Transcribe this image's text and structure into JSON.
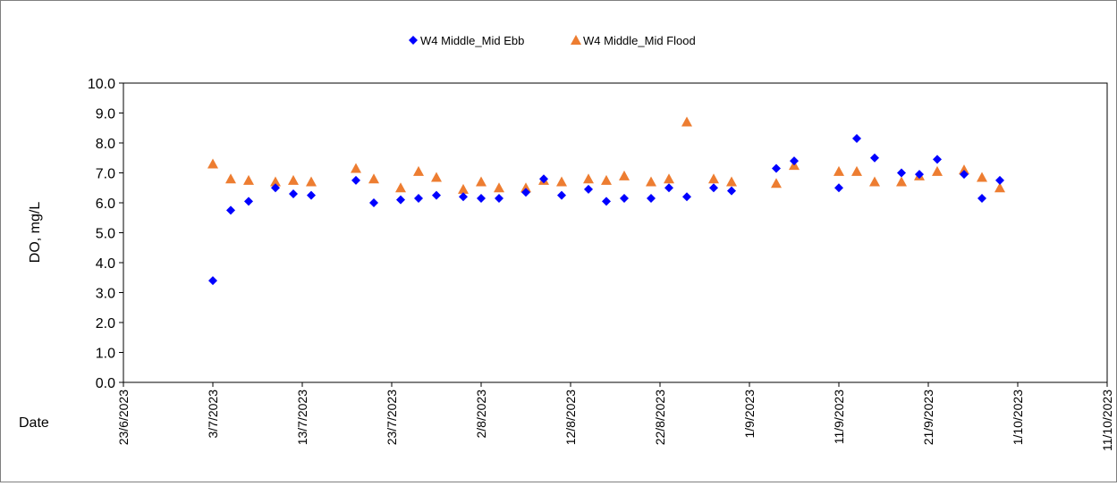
{
  "chart_data": {
    "type": "scatter",
    "title": "",
    "xlabel": "Date",
    "ylabel": "DO, mg/L",
    "x_type": "date",
    "xlim": [
      "2023-06-23",
      "2023-10-11"
    ],
    "x_ticks": [
      "2023-06-23",
      "2023-07-03",
      "2023-07-13",
      "2023-07-23",
      "2023-08-02",
      "2023-08-12",
      "2023-08-22",
      "2023-09-01",
      "2023-09-11",
      "2023-09-21",
      "2023-10-01",
      "2023-10-11"
    ],
    "x_tick_labels": [
      "23/6/2023",
      "3/7/2023",
      "13/7/2023",
      "23/7/2023",
      "2/8/2023",
      "12/8/2023",
      "22/8/2023",
      "1/9/2023",
      "11/9/2023",
      "21/9/2023",
      "1/10/2023",
      "11/10/2023"
    ],
    "ylim": [
      0,
      10
    ],
    "y_ticks": [
      0,
      1,
      2,
      3,
      4,
      5,
      6,
      7,
      8,
      9,
      10
    ],
    "y_tick_labels": [
      "0.0",
      "1.0",
      "2.0",
      "3.0",
      "4.0",
      "5.0",
      "6.0",
      "7.0",
      "8.0",
      "9.0",
      "10.0"
    ],
    "grid": false,
    "legend_position": "top-center",
    "series": [
      {
        "name": "W4 Middle_Mid Ebb",
        "marker": "diamond",
        "color": "#0000ff",
        "points": [
          [
            "2023-07-03",
            3.4
          ],
          [
            "2023-07-05",
            5.75
          ],
          [
            "2023-07-07",
            6.05
          ],
          [
            "2023-07-10",
            6.5
          ],
          [
            "2023-07-12",
            6.3
          ],
          [
            "2023-07-14",
            6.25
          ],
          [
            "2023-07-19",
            6.75
          ],
          [
            "2023-07-21",
            6.0
          ],
          [
            "2023-07-24",
            6.1
          ],
          [
            "2023-07-26",
            6.15
          ],
          [
            "2023-07-28",
            6.25
          ],
          [
            "2023-07-31",
            6.2
          ],
          [
            "2023-08-02",
            6.15
          ],
          [
            "2023-08-04",
            6.15
          ],
          [
            "2023-08-07",
            6.35
          ],
          [
            "2023-08-09",
            6.8
          ],
          [
            "2023-08-11",
            6.25
          ],
          [
            "2023-08-14",
            6.45
          ],
          [
            "2023-08-16",
            6.05
          ],
          [
            "2023-08-18",
            6.15
          ],
          [
            "2023-08-21",
            6.15
          ],
          [
            "2023-08-23",
            6.5
          ],
          [
            "2023-08-25",
            6.2
          ],
          [
            "2023-08-28",
            6.5
          ],
          [
            "2023-08-30",
            6.4
          ],
          [
            "2023-09-04",
            7.15
          ],
          [
            "2023-09-06",
            7.4
          ],
          [
            "2023-09-11",
            6.5
          ],
          [
            "2023-09-13",
            8.15
          ],
          [
            "2023-09-15",
            7.5
          ],
          [
            "2023-09-18",
            7.0
          ],
          [
            "2023-09-20",
            6.95
          ],
          [
            "2023-09-22",
            7.45
          ],
          [
            "2023-09-25",
            6.95
          ],
          [
            "2023-09-27",
            6.15
          ],
          [
            "2023-09-29",
            6.75
          ]
        ]
      },
      {
        "name": "W4 Middle_Mid Flood",
        "marker": "triangle",
        "color": "#ed7d31",
        "points": [
          [
            "2023-07-03",
            7.3
          ],
          [
            "2023-07-05",
            6.8
          ],
          [
            "2023-07-07",
            6.75
          ],
          [
            "2023-07-10",
            6.7
          ],
          [
            "2023-07-12",
            6.75
          ],
          [
            "2023-07-14",
            6.7
          ],
          [
            "2023-07-19",
            7.15
          ],
          [
            "2023-07-21",
            6.8
          ],
          [
            "2023-07-24",
            6.5
          ],
          [
            "2023-07-26",
            7.05
          ],
          [
            "2023-07-28",
            6.85
          ],
          [
            "2023-07-31",
            6.45
          ],
          [
            "2023-08-02",
            6.7
          ],
          [
            "2023-08-04",
            6.5
          ],
          [
            "2023-08-07",
            6.5
          ],
          [
            "2023-08-09",
            6.75
          ],
          [
            "2023-08-11",
            6.7
          ],
          [
            "2023-08-14",
            6.8
          ],
          [
            "2023-08-16",
            6.75
          ],
          [
            "2023-08-18",
            6.9
          ],
          [
            "2023-08-21",
            6.7
          ],
          [
            "2023-08-23",
            6.8
          ],
          [
            "2023-08-25",
            8.7
          ],
          [
            "2023-08-28",
            6.8
          ],
          [
            "2023-08-30",
            6.7
          ],
          [
            "2023-09-04",
            6.65
          ],
          [
            "2023-09-06",
            7.25
          ],
          [
            "2023-09-11",
            7.05
          ],
          [
            "2023-09-13",
            7.05
          ],
          [
            "2023-09-15",
            6.7
          ],
          [
            "2023-09-18",
            6.7
          ],
          [
            "2023-09-20",
            6.9
          ],
          [
            "2023-09-22",
            7.05
          ],
          [
            "2023-09-25",
            7.1
          ],
          [
            "2023-09-27",
            6.85
          ],
          [
            "2023-09-29",
            6.5
          ]
        ]
      }
    ]
  }
}
